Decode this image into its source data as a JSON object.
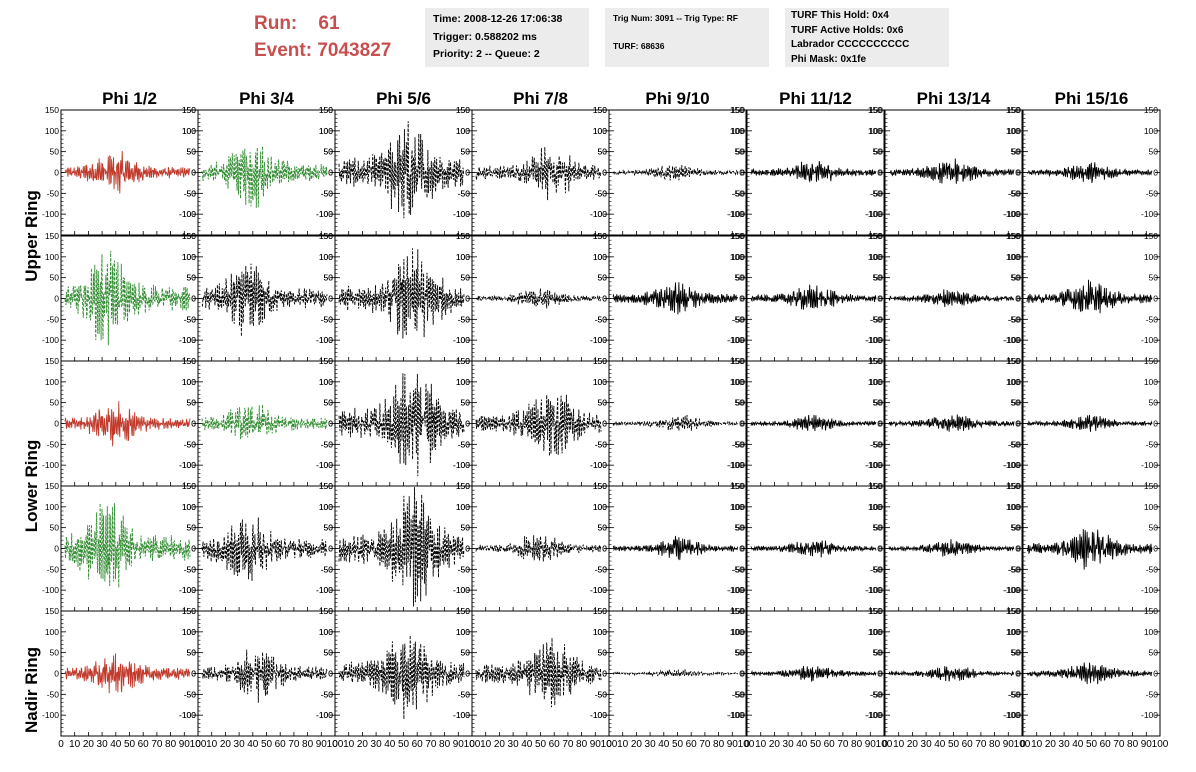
{
  "header": {
    "run_label": "Run:",
    "run_value": "61",
    "event_label": "Event:",
    "event_value": "7043827"
  },
  "info_box_1": {
    "time": "Time: 2008-12-26 17:06:38",
    "trigger": "Trigger: 0.588202 ms",
    "priority": "Priority: 2 -- Queue: 2"
  },
  "info_box_2": {
    "trig": "Trig Num: 3091 -- Trig Type: RF",
    "turf": "TURF: 68636"
  },
  "info_box_3": {
    "hold": "TURF This Hold: 0x4",
    "active_holds": "TURF Active Holds: 0x6",
    "labrador": "Labrador CCCCCCCCCC",
    "phi_mask": "Phi Mask: 0x1fe"
  },
  "colors": {
    "triggered_red": "#c0392b",
    "triggered_green": "#2e8b2e",
    "normal": "#000000",
    "run_text": "#c84f4f"
  },
  "chart_data": {
    "type": "line",
    "columns": [
      "Phi 1/2",
      "Phi 3/4",
      "Phi 5/6",
      "Phi 7/8",
      "Phi 9/10",
      "Phi 11/12",
      "Phi 13/14",
      "Phi 15/16"
    ],
    "rows": [
      "Upper Ring",
      "Upper Ring",
      "Lower Ring",
      "Lower Ring",
      "Nadir Ring"
    ],
    "row_titles": [
      "Upper Ring",
      "Lower Ring",
      "Nadir Ring"
    ],
    "xlim": [
      0,
      100
    ],
    "ylim": [
      -150,
      150
    ],
    "yticks": [
      -100,
      -50,
      0,
      50,
      100,
      150
    ],
    "xticks": [
      0,
      10,
      20,
      30,
      40,
      50,
      60,
      70,
      80,
      90,
      100
    ],
    "grid": false,
    "note_styles": [
      "solid",
      "dashed"
    ],
    "panels": [
      [
        {
          "color": "red",
          "style": "solid",
          "amp": 0.32,
          "peak": 0.4
        },
        {
          "color": "green",
          "style": "dashed",
          "amp": 0.5,
          "peak": 0.42
        },
        {
          "color": "black",
          "style": "dashed",
          "amp": 0.78,
          "peak": 0.55
        },
        {
          "color": "black",
          "style": "dashed",
          "amp": 0.4,
          "peak": 0.6
        },
        {
          "color": "black",
          "style": "dashed",
          "amp": 0.12,
          "peak": 0.5
        },
        {
          "color": "black",
          "style": "solid",
          "amp": 0.18,
          "peak": 0.5
        },
        {
          "color": "black",
          "style": "solid",
          "amp": 0.2,
          "peak": 0.5
        },
        {
          "color": "black",
          "style": "solid",
          "amp": 0.16,
          "peak": 0.5
        }
      ],
      [
        {
          "color": "green",
          "style": "dashed",
          "amp": 0.72,
          "peak": 0.35
        },
        {
          "color": "black",
          "style": "dashed",
          "amp": 0.55,
          "peak": 0.35
        },
        {
          "color": "black",
          "style": "dashed",
          "amp": 0.72,
          "peak": 0.6
        },
        {
          "color": "black",
          "style": "dashed",
          "amp": 0.15,
          "peak": 0.5
        },
        {
          "color": "black",
          "style": "solid",
          "amp": 0.25,
          "peak": 0.5
        },
        {
          "color": "black",
          "style": "solid",
          "amp": 0.2,
          "peak": 0.5
        },
        {
          "color": "black",
          "style": "solid",
          "amp": 0.14,
          "peak": 0.5
        },
        {
          "color": "black",
          "style": "solid",
          "amp": 0.26,
          "peak": 0.5
        }
      ],
      [
        {
          "color": "red",
          "style": "solid",
          "amp": 0.32,
          "peak": 0.4
        },
        {
          "color": "green",
          "style": "dashed",
          "amp": 0.35,
          "peak": 0.38
        },
        {
          "color": "black",
          "style": "dashed",
          "amp": 0.85,
          "peak": 0.6
        },
        {
          "color": "black",
          "style": "dashed",
          "amp": 0.55,
          "peak": 0.6
        },
        {
          "color": "black",
          "style": "dashed",
          "amp": 0.12,
          "peak": 0.55
        },
        {
          "color": "black",
          "style": "solid",
          "amp": 0.12,
          "peak": 0.5
        },
        {
          "color": "black",
          "style": "solid",
          "amp": 0.14,
          "peak": 0.5
        },
        {
          "color": "black",
          "style": "solid",
          "amp": 0.12,
          "peak": 0.5
        }
      ],
      [
        {
          "color": "green",
          "style": "dashed",
          "amp": 0.72,
          "peak": 0.33
        },
        {
          "color": "black",
          "style": "dashed",
          "amp": 0.55,
          "peak": 0.35
        },
        {
          "color": "black",
          "style": "dashed",
          "amp": 0.85,
          "peak": 0.6
        },
        {
          "color": "black",
          "style": "dashed",
          "amp": 0.22,
          "peak": 0.5
        },
        {
          "color": "black",
          "style": "solid",
          "amp": 0.18,
          "peak": 0.5
        },
        {
          "color": "black",
          "style": "solid",
          "amp": 0.14,
          "peak": 0.5
        },
        {
          "color": "black",
          "style": "solid",
          "amp": 0.13,
          "peak": 0.5
        },
        {
          "color": "black",
          "style": "solid",
          "amp": 0.3,
          "peak": 0.5
        }
      ],
      [
        {
          "color": "red",
          "style": "solid",
          "amp": 0.32,
          "peak": 0.42
        },
        {
          "color": "black",
          "style": "dashed",
          "amp": 0.4,
          "peak": 0.45
        },
        {
          "color": "black",
          "style": "dashed",
          "amp": 0.65,
          "peak": 0.55
        },
        {
          "color": "black",
          "style": "dashed",
          "amp": 0.55,
          "peak": 0.6
        },
        {
          "color": "black",
          "style": "dashed",
          "amp": 0.06,
          "peak": 0.5
        },
        {
          "color": "black",
          "style": "solid",
          "amp": 0.12,
          "peak": 0.5
        },
        {
          "color": "black",
          "style": "solid",
          "amp": 0.12,
          "peak": 0.5
        },
        {
          "color": "black",
          "style": "solid",
          "amp": 0.16,
          "peak": 0.5
        }
      ]
    ]
  }
}
